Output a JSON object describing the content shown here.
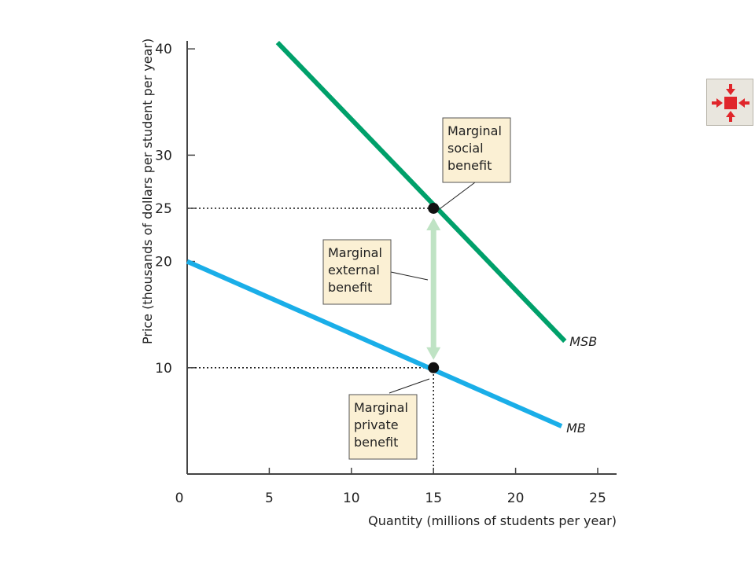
{
  "chart_data": {
    "type": "line",
    "xlabel": "Quantity (millions of students per year)",
    "ylabel": "Price (thousands of dollars per student per year)",
    "xlim": [
      0,
      26
    ],
    "ylim": [
      0,
      41.5
    ],
    "x_ticks": [
      0,
      5,
      10,
      15,
      20,
      25
    ],
    "y_ticks": [
      10,
      20,
      25,
      30,
      40
    ],
    "series": [
      {
        "name": "MSB",
        "color": "#00a06a",
        "x": [
          5.5,
          23
        ],
        "y": [
          40.6,
          12.5
        ]
      },
      {
        "name": "MB",
        "color": "#1aaee8",
        "x": [
          0,
          22.8
        ],
        "y": [
          20,
          4.5
        ]
      }
    ],
    "equilibrium_points": [
      {
        "x": 15,
        "y": 25
      },
      {
        "x": 15,
        "y": 10
      }
    ],
    "reference_lines": [
      {
        "from": [
          0,
          25
        ],
        "to": [
          15,
          25
        ]
      },
      {
        "from": [
          0,
          10
        ],
        "to": [
          15,
          10
        ]
      },
      {
        "from": [
          15,
          0
        ],
        "to": [
          15,
          10
        ]
      }
    ],
    "external_benefit_arrow": {
      "x": 15,
      "y_from": 10,
      "y_to": 25,
      "color": "#bfe3c4"
    },
    "annotations": [
      {
        "lines": [
          "Marginal",
          "social",
          "benefit"
        ],
        "fill": "#fbf0d4"
      },
      {
        "lines": [
          "Marginal",
          "external",
          "benefit"
        ],
        "fill": "#fbf0d4"
      },
      {
        "lines": [
          "Marginal",
          "private",
          "benefit"
        ],
        "fill": "#fbf0d4"
      }
    ],
    "grid": false,
    "axis_color": "#444444"
  },
  "expand_button": {
    "icon": "expand-arrows-icon",
    "color": "#e0262b"
  }
}
